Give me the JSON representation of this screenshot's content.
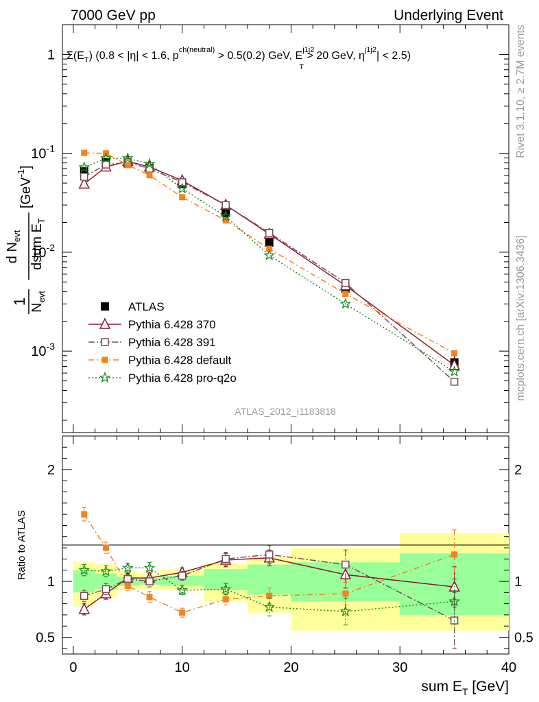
{
  "header": {
    "left": "7000 GeV pp",
    "right": "Underlying Event"
  },
  "selection": "Σ(E_T) (0.8 < |η| < 1.6, p^{ch(neutral)} > 0.5(0.2) GeV, E_T^{j1j2} > 20 GeV, η^{j1j2}| < 2.5)",
  "side_labels": {
    "rivet": "Rivet 3.1.10, ≥ 2.7M events",
    "mcplots": "mcplots.cern.ch [arXiv:1306.3436]"
  },
  "analysis_id": "ATLAS_2012_I1183818",
  "colors": {
    "data": "#000000",
    "p370": "#8b1a2b",
    "p391": "#7a4a5a",
    "default": "#f58220",
    "proq2o": "#1a8a1a",
    "band_stat": "#99ff99",
    "band_total": "#ffff99"
  },
  "chart_data": [
    {
      "type": "scatter",
      "panel": "main",
      "ylabel": "1/N_evt dN_evt/dsum E_T [GeV^-1]",
      "yscale": "log",
      "ylim": [
        0.00015,
        2.0
      ],
      "xlim": [
        -1,
        40
      ],
      "y_ticks": [
        "1",
        "10^-1",
        "10^-2",
        "10^-3"
      ],
      "x": [
        1,
        3,
        5,
        7,
        10,
        14,
        18,
        25,
        35
      ],
      "series": [
        {
          "name": "ATLAS",
          "style": "data",
          "values": [
            0.066,
            0.082,
            0.079,
            0.071,
            0.049,
            0.025,
            0.0125,
            0.0043,
            0.00077
          ],
          "err": [
            0.005,
            0.005,
            0.004,
            0.004,
            0.003,
            0.0015,
            0.0009,
            0.0004,
            0.00012
          ]
        },
        {
          "name": "Pythia 6.428 370",
          "style": "p370",
          "values": [
            0.049,
            0.073,
            0.083,
            0.073,
            0.053,
            0.03,
            0.0153,
            0.0046,
            0.00072
          ]
        },
        {
          "name": "Pythia 6.428 391",
          "style": "p391",
          "values": [
            0.058,
            0.077,
            0.081,
            0.07,
            0.051,
            0.03,
            0.0157,
            0.0049,
            0.00049
          ]
        },
        {
          "name": "Pythia 6.428 default",
          "style": "default",
          "values": [
            0.101,
            0.1,
            0.076,
            0.06,
            0.036,
            0.021,
            0.0108,
            0.0038,
            0.00095
          ]
        },
        {
          "name": "Pythia 6.428 pro-q2o",
          "style": "proq2o",
          "values": [
            0.072,
            0.089,
            0.089,
            0.078,
            0.044,
            0.023,
            0.0093,
            0.003,
            0.00062
          ]
        }
      ]
    },
    {
      "type": "scatter",
      "panel": "ratio",
      "xlabel": "sum E_T [GeV]",
      "ylabel": "Ratio to ATLAS",
      "ylim": [
        0.35,
        2.3
      ],
      "xlim": [
        -1,
        40
      ],
      "x_ticks": [
        0,
        10,
        20,
        30,
        40
      ],
      "y_ticks": [
        0.5,
        1,
        2
      ],
      "bands": {
        "edges": [
          0,
          2,
          4,
          6,
          8,
          12,
          16,
          20,
          30,
          40
        ],
        "stat": [
          [
            0.9,
            1.1
          ],
          [
            0.93,
            1.07
          ],
          [
            0.96,
            1.04
          ],
          [
            0.97,
            1.03
          ],
          [
            0.96,
            1.05
          ],
          [
            0.92,
            1.11
          ],
          [
            0.88,
            1.15
          ],
          [
            0.82,
            1.17
          ],
          [
            0.7,
            1.25
          ]
        ],
        "total": [
          [
            0.78,
            1.17
          ],
          [
            0.85,
            1.15
          ],
          [
            0.92,
            1.09
          ],
          [
            0.93,
            1.07
          ],
          [
            0.92,
            1.1
          ],
          [
            0.82,
            1.16
          ],
          [
            0.72,
            1.22
          ],
          [
            0.56,
            1.3
          ],
          [
            0.56,
            1.43
          ]
        ]
      },
      "x": [
        1,
        3,
        5,
        7,
        10,
        14,
        18,
        25,
        35
      ],
      "series": [
        {
          "name": "Pythia 6.428 370",
          "style": "p370",
          "values": [
            0.75,
            0.89,
            1.03,
            1.03,
            1.08,
            1.19,
            1.21,
            1.06,
            0.95
          ],
          "err": [
            0.05,
            0.05,
            0.04,
            0.05,
            0.04,
            0.06,
            0.07,
            0.12,
            0.18
          ]
        },
        {
          "name": "Pythia 6.428 391",
          "style": "p391",
          "values": [
            0.87,
            0.93,
            1.02,
            1.0,
            1.05,
            1.2,
            1.24,
            1.15,
            0.65
          ],
          "err": [
            0.05,
            0.05,
            0.04,
            0.05,
            0.04,
            0.06,
            0.08,
            0.13,
            0.25
          ]
        },
        {
          "name": "Pythia 6.428 default",
          "style": "default",
          "values": [
            1.6,
            1.3,
            0.96,
            0.86,
            0.72,
            0.84,
            0.87,
            0.89,
            1.24
          ],
          "err": [
            0.06,
            0.05,
            0.04,
            0.05,
            0.04,
            0.05,
            0.07,
            0.1,
            0.22
          ]
        },
        {
          "name": "Pythia 6.428 pro-q2o",
          "style": "proq2o",
          "values": [
            1.1,
            1.09,
            1.12,
            1.12,
            0.92,
            0.93,
            0.77,
            0.73,
            0.82
          ],
          "err": [
            0.05,
            0.05,
            0.04,
            0.05,
            0.04,
            0.05,
            0.08,
            0.12,
            0.2
          ]
        }
      ]
    }
  ]
}
